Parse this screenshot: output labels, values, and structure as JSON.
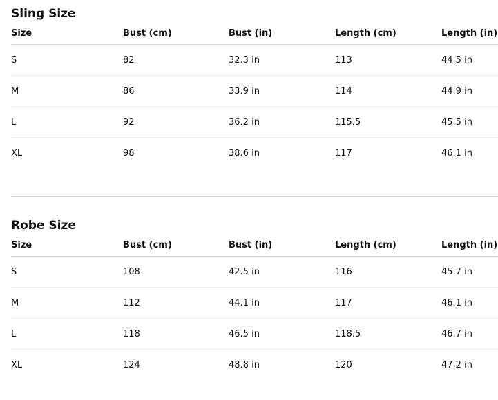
{
  "sling": {
    "title": "Sling Size",
    "headers": [
      "Size",
      "Bust (cm)",
      "Bust (in)",
      "Length (cm)",
      "Length (in)"
    ],
    "rows": [
      [
        "S",
        "82",
        "32.3 in",
        "113",
        "44.5 in"
      ],
      [
        "M",
        "86",
        "33.9 in",
        "114",
        "44.9 in"
      ],
      [
        "L",
        "92",
        "36.2 in",
        "115.5",
        "45.5 in"
      ],
      [
        "XL",
        "98",
        "38.6 in",
        "117",
        "46.1 in"
      ]
    ]
  },
  "robe": {
    "title": "Robe Size",
    "headers": [
      "Size",
      "Bust (cm)",
      "Bust (in)",
      "Length (cm)",
      "Length (in)"
    ],
    "rows": [
      [
        "S",
        "108",
        "42.5 in",
        "116",
        "45.7 in"
      ],
      [
        "M",
        "112",
        "44.1 in",
        "117",
        "46.1 in"
      ],
      [
        "L",
        "118",
        "46.5 in",
        "118.5",
        "46.7 in"
      ],
      [
        "XL",
        "124",
        "48.8 in",
        "120",
        "47.2 in"
      ]
    ]
  }
}
